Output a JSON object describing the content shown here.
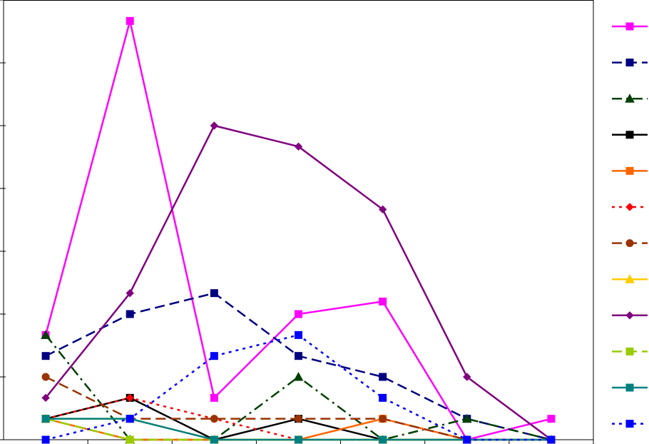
{
  "chart_data": {
    "type": "line",
    "categories": [
      null,
      null,
      null,
      null,
      null,
      null,
      null
    ],
    "ylim": [
      0,
      21
    ],
    "yticks": [
      0,
      3,
      6,
      9,
      12,
      15,
      18,
      21
    ],
    "grid": false,
    "series": [
      {
        "color": "#ff00ff",
        "marker": "square",
        "dash": "solid",
        "values": [
          5,
          20,
          2,
          6,
          6.6,
          0,
          1
        ]
      },
      {
        "color": "#000080",
        "marker": "square",
        "dash": "dashed",
        "values": [
          4,
          6,
          7,
          4,
          3,
          1,
          0
        ]
      },
      {
        "color": "#004000",
        "marker": "triangle",
        "dash": "dashdot",
        "values": [
          5,
          0,
          0,
          3,
          0,
          1,
          0
        ]
      },
      {
        "color": "#000000",
        "marker": "square",
        "dash": "solid",
        "values": [
          1,
          2,
          0,
          1,
          0,
          0,
          0
        ]
      },
      {
        "color": "#ff6600",
        "marker": "square",
        "dash": "solid",
        "values": [
          1,
          0,
          0,
          0,
          1,
          0,
          0
        ]
      },
      {
        "color": "#ff0000",
        "marker": "diamond",
        "dash": "dotted",
        "values": [
          1,
          2,
          1,
          0,
          0,
          0,
          0
        ]
      },
      {
        "color": "#993300",
        "marker": "circle",
        "dash": "dashed",
        "values": [
          3,
          1,
          1,
          1,
          1,
          0,
          0
        ]
      },
      {
        "color": "#ffcc00",
        "marker": "triangle",
        "dash": "solid",
        "values": [
          1,
          1,
          0,
          0,
          0,
          0,
          0
        ]
      },
      {
        "color": "#800080",
        "marker": "diamond",
        "dash": "solid",
        "values": [
          2,
          7,
          15,
          14,
          11,
          3,
          0
        ]
      },
      {
        "color": "#99cc00",
        "marker": "square",
        "dash": "dashed",
        "values": [
          1,
          0,
          0,
          0,
          0,
          0,
          0
        ]
      },
      {
        "color": "#008080",
        "marker": "square",
        "dash": "solid",
        "values": [
          1,
          1,
          0,
          0,
          0,
          0,
          0
        ]
      },
      {
        "color": "#0000ff",
        "marker": "square",
        "dash": "dotted",
        "values": [
          0,
          1,
          4,
          5,
          2,
          0,
          0
        ]
      }
    ]
  }
}
